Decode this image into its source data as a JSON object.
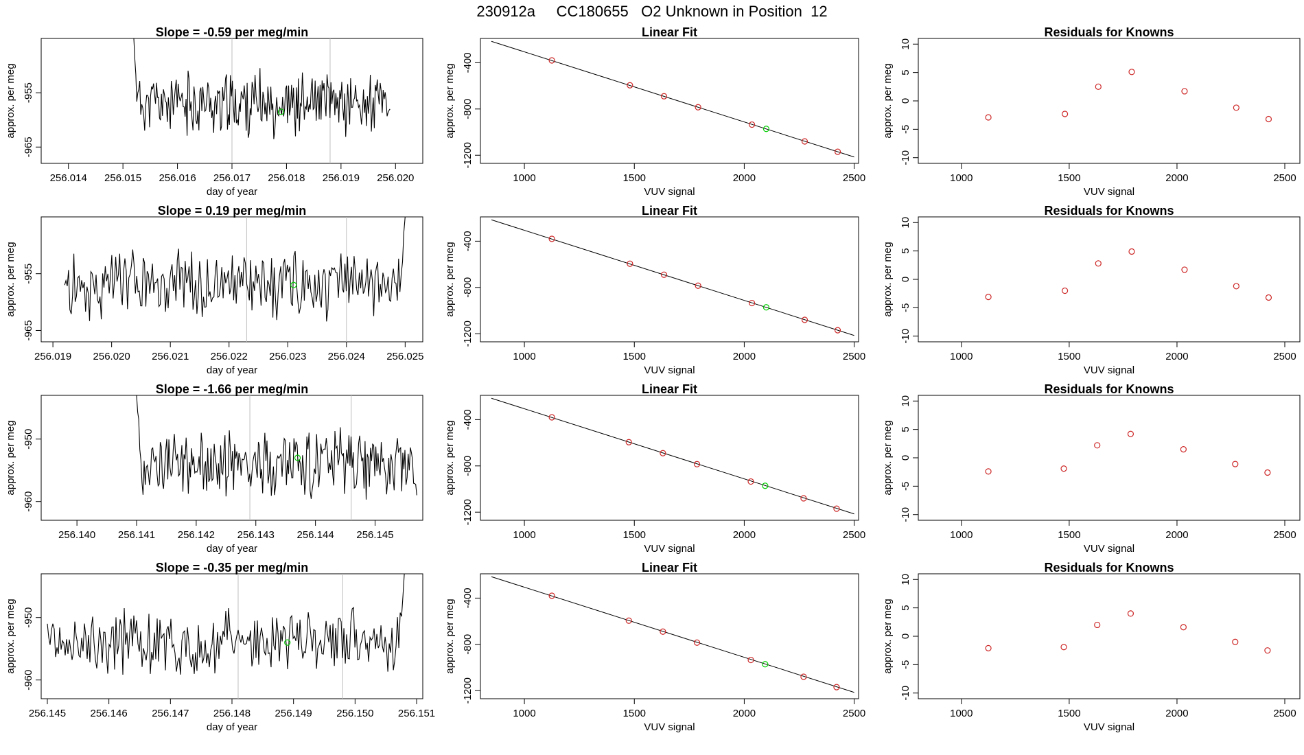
{
  "figure_title": "230912a     CC180655   O2 Unknown in Position  12",
  "colors": {
    "line": "#000000",
    "marker_known": "#cd2626",
    "marker_unknown": "#00cd00",
    "vertical_line": "#bebebe"
  },
  "common": {
    "time_ylabel": "approx. per meg",
    "time_xlabel": "day of year",
    "fit_title": "Linear Fit",
    "fit_ylabel": "approx. per meg",
    "fit_xlabel": "VUV signal",
    "resid_title": "Residuals for Knowns",
    "resid_ylabel": "approx. per meg",
    "resid_xlabel": "VUV signal"
  },
  "chart_data": [
    {
      "type": "line",
      "panel": "time-series",
      "row": 1,
      "title": "Slope =  -0.59  per meg/min",
      "xlabel": "day of year",
      "ylabel": "approx. per meg",
      "xlim": [
        256.0135,
        256.0205
      ],
      "ylim": [
        -968,
        -945
      ],
      "xticks": [
        "256.014",
        "256.015",
        "256.016",
        "256.017",
        "256.018",
        "256.019",
        "256.020"
      ],
      "yticks": [
        "-955",
        "-965"
      ],
      "series_start": 256.0152,
      "series_end": 256.0199,
      "series_mean": -957,
      "series_amplitude": 4.5,
      "start_value": -945,
      "end_value": -958,
      "unknown_marker": {
        "x": 256.0179,
        "y": -958.5
      },
      "vlines": [
        256.017,
        256.0188
      ],
      "seed": 11
    },
    {
      "type": "line",
      "panel": "time-series",
      "row": 2,
      "title": "Slope =  0.19  per meg/min",
      "xlabel": "day of year",
      "ylabel": "approx. per meg",
      "xlim": [
        256.0188,
        256.0253
      ],
      "ylim": [
        -967,
        -945
      ],
      "xticks": [
        "256.019",
        "256.020",
        "256.021",
        "256.022",
        "256.023",
        "256.024",
        "256.025"
      ],
      "yticks": [
        "-955",
        "-965"
      ],
      "series_start": 256.0192,
      "series_end": 256.025,
      "series_mean": -957,
      "series_amplitude": 4.5,
      "start_value": -957,
      "end_value": -945,
      "unknown_marker": {
        "x": 256.0231,
        "y": -957
      },
      "vlines": [
        256.0223,
        256.024
      ],
      "seed": 29
    },
    {
      "type": "line",
      "panel": "time-series",
      "row": 3,
      "title": "Slope =  -1.66  per meg/min",
      "xlabel": "day of year",
      "ylabel": "approx. per meg",
      "xlim": [
        256.1394,
        256.1458
      ],
      "ylim": [
        -963,
        -943
      ],
      "xticks": [
        "256.140",
        "256.141",
        "256.142",
        "256.143",
        "256.144",
        "256.145"
      ],
      "yticks": [
        "-950",
        "-960"
      ],
      "series_start": 256.141,
      "series_end": 256.1457,
      "series_mean": -954,
      "series_amplitude": 4,
      "start_value": -943,
      "end_value": -959,
      "unknown_marker": {
        "x": 256.1437,
        "y": -953
      },
      "vlines": [
        256.1429,
        256.1446
      ],
      "seed": 53
    },
    {
      "type": "line",
      "panel": "time-series",
      "row": 4,
      "title": "Slope =  -0.35  per meg/min",
      "xlabel": "day of year",
      "ylabel": "approx. per meg",
      "xlim": [
        256.1449,
        256.1511
      ],
      "ylim": [
        -963,
        -943
      ],
      "xticks": [
        "256.145",
        "256.146",
        "256.147",
        "256.148",
        "256.149",
        "256.150",
        "256.151"
      ],
      "yticks": [
        "-950",
        "-960"
      ],
      "series_start": 256.145,
      "series_end": 256.1508,
      "series_mean": -954,
      "series_amplitude": 4,
      "start_value": -951,
      "end_value": -943,
      "unknown_marker": {
        "x": 256.1489,
        "y": -954
      },
      "vlines": [
        256.1481,
        256.1498
      ],
      "seed": 71
    },
    {
      "type": "scatter",
      "panel": "linear-fit",
      "row": 1,
      "title": "Linear Fit",
      "xlabel": "VUV signal",
      "ylabel": "approx. per meg",
      "xlim": [
        800,
        2520
      ],
      "ylim": [
        -1270,
        -190
      ],
      "xticks": [
        "1000",
        "1500",
        "2000",
        "2500"
      ],
      "yticks": [
        "-400",
        "-800",
        "-1200"
      ],
      "fit_line": {
        "x": [
          850,
          2500
        ],
        "y": [
          -215,
          -1215
        ]
      },
      "known_points": {
        "x": [
          1125,
          1480,
          1635,
          1790,
          2035,
          2275,
          2425
        ],
        "y": [
          -380,
          -595,
          -690,
          -785,
          -935,
          -1080,
          -1170
        ]
      },
      "unknown_point": {
        "x": 2100,
        "y": -972
      }
    },
    {
      "type": "scatter",
      "panel": "linear-fit",
      "row": 2,
      "title": "Linear Fit",
      "xlabel": "VUV signal",
      "ylabel": "approx. per meg",
      "xlim": [
        800,
        2520
      ],
      "ylim": [
        -1270,
        -190
      ],
      "xticks": [
        "1000",
        "1500",
        "2000",
        "2500"
      ],
      "yticks": [
        "-400",
        "-800",
        "-1200"
      ],
      "fit_line": {
        "x": [
          850,
          2500
        ],
        "y": [
          -215,
          -1215
        ]
      },
      "known_points": {
        "x": [
          1125,
          1480,
          1635,
          1790,
          2035,
          2275,
          2425
        ],
        "y": [
          -380,
          -595,
          -690,
          -785,
          -935,
          -1080,
          -1170
        ]
      },
      "unknown_point": {
        "x": 2100,
        "y": -972
      }
    },
    {
      "type": "scatter",
      "panel": "linear-fit",
      "row": 3,
      "title": "Linear Fit",
      "xlabel": "VUV signal",
      "ylabel": "approx. per meg",
      "xlim": [
        800,
        2520
      ],
      "ylim": [
        -1270,
        -190
      ],
      "xticks": [
        "1000",
        "1500",
        "2000",
        "2500"
      ],
      "yticks": [
        "-400",
        "-800",
        "-1200"
      ],
      "fit_line": {
        "x": [
          850,
          2500
        ],
        "y": [
          -215,
          -1215
        ]
      },
      "known_points": {
        "x": [
          1125,
          1475,
          1630,
          1785,
          2030,
          2270,
          2420
        ],
        "y": [
          -380,
          -595,
          -690,
          -785,
          -935,
          -1080,
          -1170
        ]
      },
      "unknown_point": {
        "x": 2095,
        "y": -972
      }
    },
    {
      "type": "scatter",
      "panel": "linear-fit",
      "row": 4,
      "title": "Linear Fit",
      "xlabel": "VUV signal",
      "ylabel": "approx. per meg",
      "xlim": [
        800,
        2520
      ],
      "ylim": [
        -1270,
        -190
      ],
      "xticks": [
        "1000",
        "1500",
        "2000",
        "2500"
      ],
      "yticks": [
        "-400",
        "-800",
        "-1200"
      ],
      "fit_line": {
        "x": [
          850,
          2500
        ],
        "y": [
          -215,
          -1215
        ]
      },
      "known_points": {
        "x": [
          1125,
          1475,
          1630,
          1785,
          2030,
          2270,
          2420
        ],
        "y": [
          -380,
          -595,
          -690,
          -785,
          -935,
          -1080,
          -1170
        ]
      },
      "unknown_point": {
        "x": 2095,
        "y": -972
      }
    },
    {
      "type": "scatter",
      "panel": "residuals",
      "row": 1,
      "title": "Residuals for Knowns",
      "xlabel": "VUV signal",
      "ylabel": "approx. per meg",
      "xlim": [
        800,
        2570
      ],
      "ylim": [
        -11,
        11
      ],
      "xticks": [
        "1000",
        "1500",
        "2000",
        "2500"
      ],
      "yticks": [
        "10",
        "5",
        "0",
        "-5",
        "-10"
      ],
      "points": {
        "x": [
          1125,
          1480,
          1635,
          1790,
          2035,
          2275,
          2425
        ],
        "y": [
          -2.9,
          -2.3,
          2.5,
          5.1,
          1.7,
          -1.2,
          -3.2
        ]
      }
    },
    {
      "type": "scatter",
      "panel": "residuals",
      "row": 2,
      "title": "Residuals for Knowns",
      "xlabel": "VUV signal",
      "ylabel": "approx. per meg",
      "xlim": [
        800,
        2570
      ],
      "ylim": [
        -11,
        11
      ],
      "xticks": [
        "1000",
        "1500",
        "2000",
        "2500"
      ],
      "yticks": [
        "10",
        "5",
        "0",
        "-5",
        "-10"
      ],
      "points": {
        "x": [
          1125,
          1480,
          1635,
          1790,
          2035,
          2275,
          2425
        ],
        "y": [
          -3.1,
          -2.0,
          2.8,
          4.9,
          1.7,
          -1.2,
          -3.2
        ]
      }
    },
    {
      "type": "scatter",
      "panel": "residuals",
      "row": 3,
      "title": "Residuals for Knowns",
      "xlabel": "VUV signal",
      "ylabel": "approx. per meg",
      "xlim": [
        800,
        2570
      ],
      "ylim": [
        -11,
        11
      ],
      "xticks": [
        "1000",
        "1500",
        "2000",
        "2500"
      ],
      "yticks": [
        "10",
        "5",
        "0",
        "-5",
        "-10"
      ],
      "points": {
        "x": [
          1125,
          1475,
          1630,
          1785,
          2030,
          2270,
          2420
        ],
        "y": [
          -2.4,
          -1.9,
          2.2,
          4.2,
          1.5,
          -1.1,
          -2.6
        ]
      }
    },
    {
      "type": "scatter",
      "panel": "residuals",
      "row": 4,
      "title": "Residuals for Knowns",
      "xlabel": "VUV signal",
      "ylabel": "approx. per meg",
      "xlim": [
        800,
        2570
      ],
      "ylim": [
        -11,
        11
      ],
      "xticks": [
        "1000",
        "1500",
        "2000",
        "2500"
      ],
      "yticks": [
        "10",
        "5",
        "0",
        "-5",
        "-10"
      ],
      "points": {
        "x": [
          1125,
          1475,
          1630,
          1785,
          2030,
          2270,
          2420
        ],
        "y": [
          -2.1,
          -1.9,
          2.0,
          4.0,
          1.6,
          -1.0,
          -2.5
        ]
      }
    }
  ]
}
